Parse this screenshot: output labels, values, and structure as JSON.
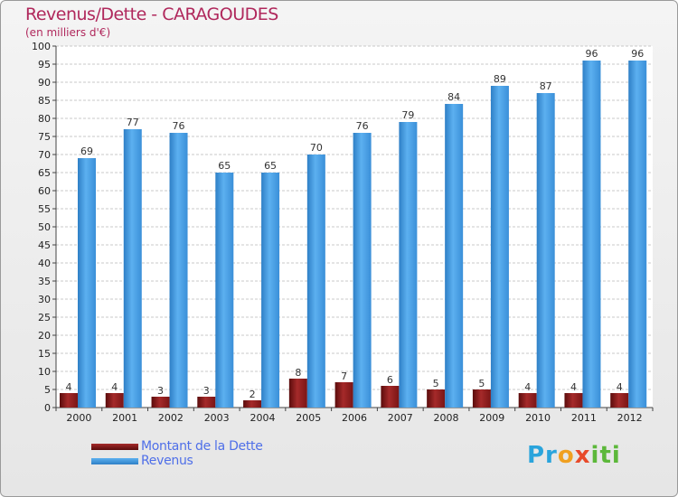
{
  "colors": {
    "title": "#b0285c",
    "debt_bar": "#7a1515",
    "debt_bar_light": "#a52a2a",
    "revenue_bar": "#3a8fd8",
    "revenue_bar_light": "#5cb0f0",
    "legend_text": "#4f6fe8"
  },
  "logo": {
    "text": "Proxiti"
  },
  "chart_data": {
    "type": "bar",
    "title": "Revenus/Dette - CARAGOUDES",
    "subtitle": "(en milliers d'€)",
    "xlabel": "",
    "ylabel": "",
    "ylim": [
      0,
      100
    ],
    "ytick_step": 5,
    "grid": true,
    "legend_position": "bottom-left",
    "categories": [
      "2000",
      "2001",
      "2002",
      "2003",
      "2004",
      "2005",
      "2006",
      "2007",
      "2008",
      "2009",
      "2010",
      "2011",
      "2012"
    ],
    "series": [
      {
        "name": "Montant de la Dette",
        "values": [
          4,
          4,
          3,
          3,
          2,
          8,
          7,
          6,
          5,
          5,
          4,
          4,
          4
        ]
      },
      {
        "name": "Revenus",
        "values": [
          69,
          77,
          76,
          65,
          65,
          70,
          76,
          79,
          84,
          89,
          87,
          96,
          96
        ]
      }
    ]
  }
}
